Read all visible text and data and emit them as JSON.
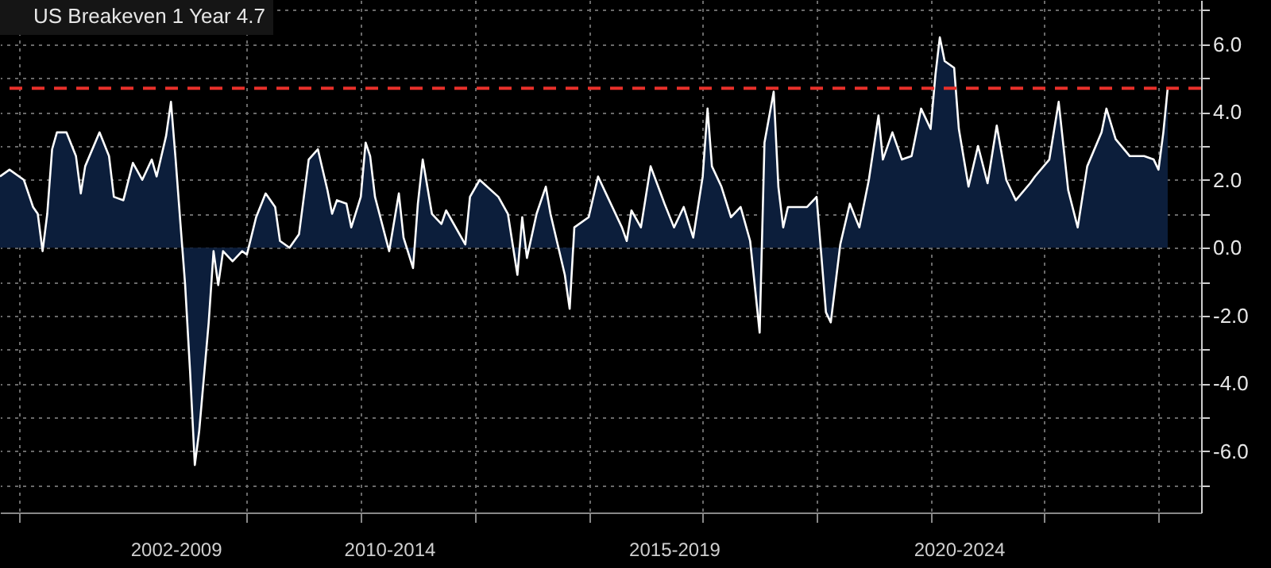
{
  "chart_data": {
    "type": "area",
    "legend": "top left",
    "grid": true,
    "x": [
      "2005-09",
      "2005-11",
      "2006-02",
      "2006-04",
      "2006-05",
      "2006-06",
      "2006-07",
      "2006-08",
      "2006-09",
      "2006-11",
      "2007-01",
      "2007-02",
      "2007-03",
      "2007-06",
      "2007-08",
      "2007-09",
      "2007-11",
      "2008-01",
      "2008-03",
      "2008-05",
      "2008-06",
      "2008-08",
      "2008-09",
      "2008-10",
      "2008-11",
      "2008-12",
      "2009-01",
      "2009-02",
      "2009-03",
      "2009-05",
      "2009-06",
      "2009-07",
      "2009-08",
      "2009-10",
      "2009-12",
      "2010-01",
      "2010-03",
      "2010-05",
      "2010-07",
      "2010-08",
      "2010-10",
      "2010-12",
      "2011-02",
      "2011-04",
      "2011-06",
      "2011-07",
      "2011-08",
      "2011-10",
      "2011-11",
      "2012-01",
      "2012-02",
      "2012-03",
      "2012-04",
      "2012-07",
      "2012-09",
      "2012-10",
      "2012-12",
      "2013-01",
      "2013-02",
      "2013-04",
      "2013-06",
      "2013-07",
      "2013-11",
      "2013-12",
      "2014-02",
      "2014-06",
      "2014-08",
      "2014-10",
      "2014-11",
      "2014-12",
      "2015-02",
      "2015-04",
      "2015-05",
      "2015-08",
      "2015-09",
      "2015-10",
      "2016-01",
      "2016-03",
      "2016-05",
      "2016-08",
      "2016-09",
      "2016-10",
      "2016-12",
      "2017-02",
      "2017-05",
      "2017-07",
      "2017-09",
      "2017-11",
      "2018-01",
      "2018-02",
      "2018-03",
      "2018-05",
      "2018-07",
      "2018-09",
      "2018-11",
      "2019-01",
      "2019-02",
      "2019-04",
      "2019-05",
      "2019-06",
      "2019-07",
      "2019-11",
      "2020-01",
      "2020-03",
      "2020-04",
      "2020-06",
      "2020-08",
      "2020-10",
      "2020-12",
      "2021-02",
      "2021-03",
      "2021-05",
      "2021-07",
      "2021-09",
      "2021-11",
      "2022-01",
      "2022-02",
      "2022-03",
      "2022-04",
      "2022-06",
      "2022-07",
      "2022-09",
      "2022-11",
      "2023-01",
      "2023-03",
      "2023-05",
      "2023-07",
      "2023-10",
      "2023-11",
      "2024-02",
      "2024-04",
      "2024-06",
      "2024-08",
      "2024-10",
      "2025-01",
      "2025-02",
      "2025-04",
      "2025-07",
      "2025-10",
      "2025-12",
      "2026-01",
      "2026-02",
      "2026-03"
    ],
    "series": [
      {
        "name": "US Breakeven 1 Year 4.7",
        "color": "#ffffff",
        "values": [
          2.1,
          2.3,
          2.0,
          1.2,
          1.0,
          -0.1,
          1.0,
          2.9,
          3.4,
          3.4,
          2.7,
          1.6,
          2.4,
          3.4,
          2.7,
          1.5,
          1.4,
          2.5,
          2.0,
          2.6,
          2.1,
          3.3,
          4.3,
          2.6,
          0.7,
          -1.1,
          -3.6,
          -6.4,
          -5.4,
          -2.2,
          -0.1,
          -1.1,
          -0.1,
          -0.4,
          -0.1,
          -0.2,
          0.9,
          1.6,
          1.2,
          0.2,
          0.0,
          0.4,
          2.6,
          2.9,
          1.7,
          1.0,
          1.4,
          1.3,
          0.6,
          1.5,
          3.1,
          2.7,
          1.5,
          -0.1,
          1.6,
          0.3,
          -0.6,
          1.3,
          2.6,
          1.0,
          0.7,
          1.1,
          0.1,
          1.5,
          2.0,
          1.5,
          1.0,
          -0.8,
          0.9,
          -0.3,
          1.0,
          1.8,
          1.0,
          -0.8,
          -1.8,
          0.6,
          0.9,
          2.1,
          1.5,
          0.6,
          0.2,
          1.1,
          0.6,
          2.4,
          1.3,
          0.6,
          1.2,
          0.3,
          2.1,
          4.1,
          2.4,
          1.8,
          0.9,
          1.2,
          0.2,
          -2.5,
          3.1,
          4.6,
          1.8,
          0.6,
          1.2,
          1.2,
          1.5,
          -1.9,
          -2.2,
          0.1,
          1.3,
          0.6,
          2.0,
          3.9,
          2.6,
          3.4,
          2.6,
          2.7,
          4.1,
          3.5,
          5.1,
          6.2,
          5.5,
          5.3,
          3.5,
          1.8,
          3.0,
          1.9,
          3.6,
          2.0,
          1.4,
          1.9,
          2.1,
          2.6,
          4.3,
          1.7,
          0.6,
          2.4,
          3.4,
          4.1,
          3.2,
          2.7,
          2.7,
          2.6,
          2.3,
          3.4,
          4.7
        ]
      }
    ],
    "xlim": [
      "2005-09",
      "2026-10"
    ],
    "xticks": [
      {
        "value": "2006",
        "label": null
      },
      {
        "value": "2008-10",
        "label": "2002-2009"
      },
      {
        "value": "2010",
        "label": null
      },
      {
        "value": "2012",
        "label": null
      },
      {
        "value": "2012-07",
        "label": "2010-2014"
      },
      {
        "value": "2014",
        "label": null
      },
      {
        "value": "2016",
        "label": null
      },
      {
        "value": "2017-07",
        "label": "2015-2019"
      },
      {
        "value": "2018",
        "label": null
      },
      {
        "value": "2020",
        "label": null
      },
      {
        "value": "2022",
        "label": null
      },
      {
        "value": "2022-07",
        "label": "2020-2024"
      },
      {
        "value": "2024",
        "label": null
      },
      {
        "value": "2026",
        "label": null
      }
    ],
    "ylim": [
      -7.8,
      7.3
    ],
    "yticks": [
      {
        "value": -7,
        "label": null
      },
      {
        "value": -6,
        "label": "-6.0"
      },
      {
        "value": -5,
        "label": null
      },
      {
        "value": -4,
        "label": "-4.0"
      },
      {
        "value": -3,
        "label": null
      },
      {
        "value": -2,
        "label": "-2.0"
      },
      {
        "value": -1,
        "label": null
      },
      {
        "value": 0,
        "label": "0.0"
      },
      {
        "value": 1,
        "label": null
      },
      {
        "value": 2,
        "label": "2.0"
      },
      {
        "value": 3,
        "label": null
      },
      {
        "value": 4,
        "label": "4.0"
      },
      {
        "value": 5,
        "label": null
      },
      {
        "value": 6,
        "label": "6.0"
      },
      {
        "value": 7,
        "label": null
      }
    ],
    "ref_lines": [
      {
        "axis": "y",
        "value": 4.7,
        "color": "#e8302a",
        "line_style": "dashed"
      }
    ]
  }
}
